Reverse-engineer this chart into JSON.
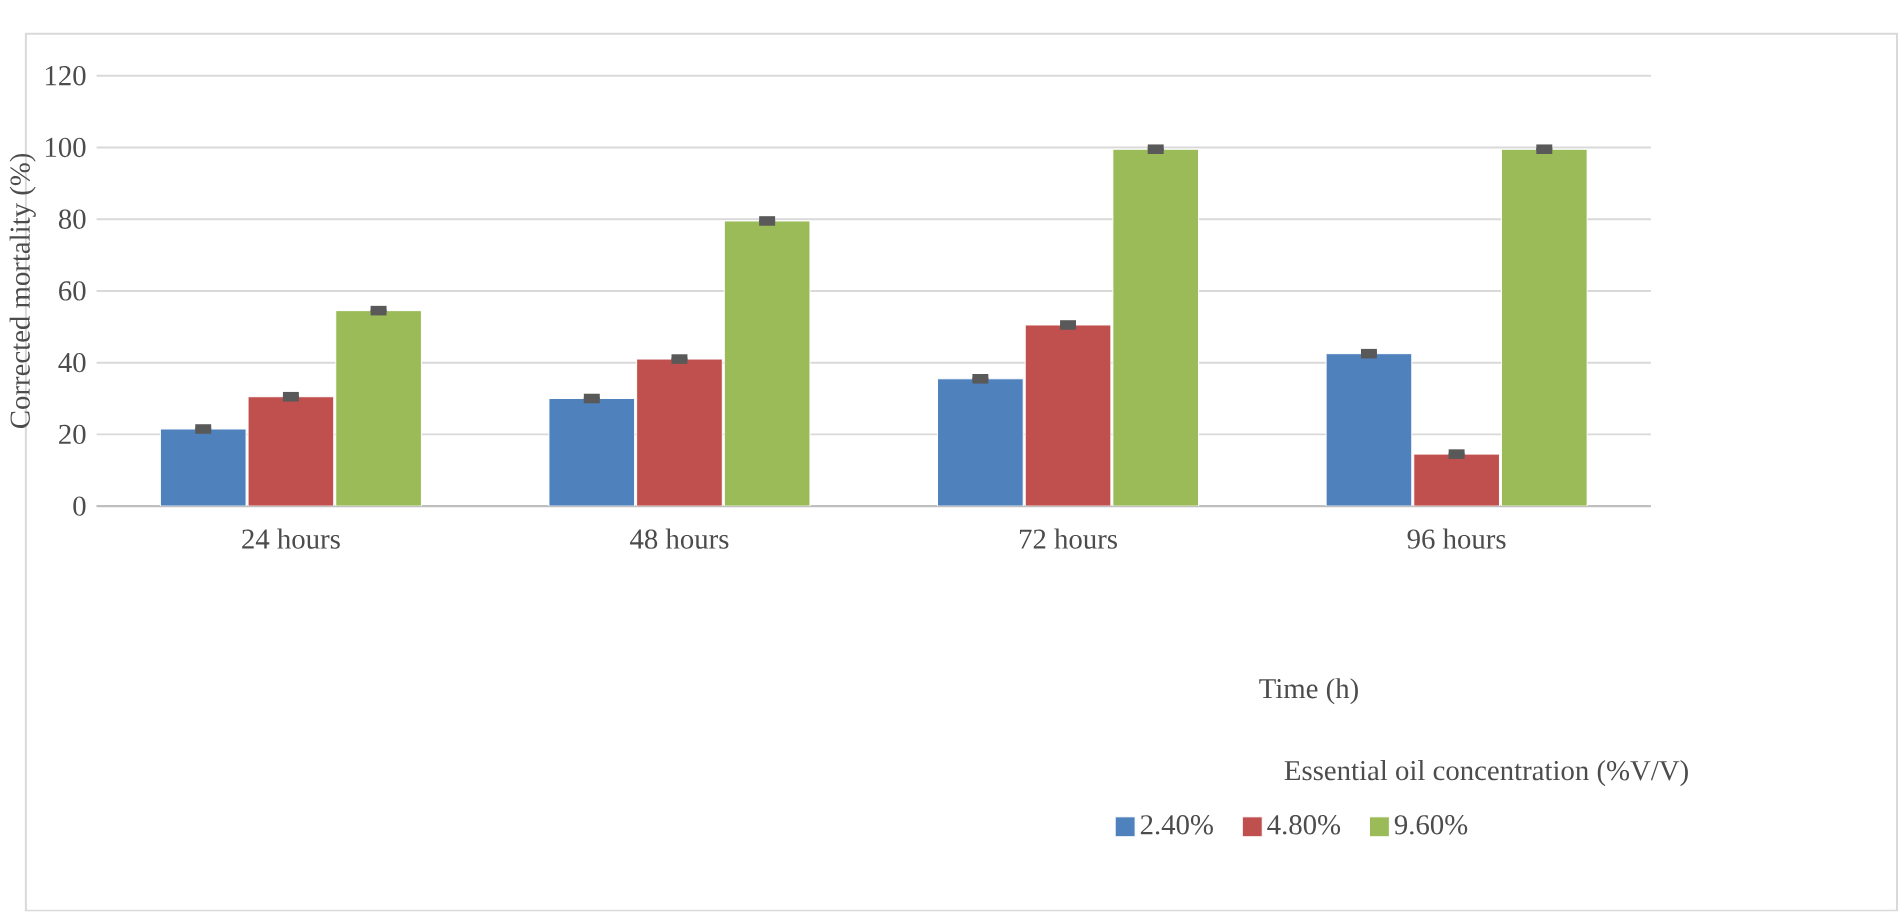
{
  "chart_data": {
    "type": "bar",
    "xlabel": "Time (h)",
    "ylabel": "Corrected mortality (%)",
    "legend_title": "Essential oil concentration (%V/V)",
    "categories": [
      "24 hours",
      "48 hours",
      "72 hours",
      "96 hours"
    ],
    "series": [
      {
        "name": "2.40%",
        "color": "#4f81bd",
        "values": [
          21.5,
          30,
          35.5,
          42.5
        ],
        "errors": [
          0.5,
          0.5,
          0.5,
          0.5
        ]
      },
      {
        "name": "4.80%",
        "color": "#c0504d",
        "values": [
          30.5,
          41,
          50.5,
          14.5
        ],
        "errors": [
          0.5,
          0.5,
          0.5,
          0.5
        ]
      },
      {
        "name": "9.60%",
        "color": "#9bbb59",
        "values": [
          54.5,
          79.5,
          99.5,
          99.5
        ],
        "errors": [
          0.5,
          0.5,
          0.5,
          0.5
        ]
      }
    ],
    "ylim": [
      0,
      120
    ],
    "yticks": [
      0,
      20,
      40,
      60,
      80,
      100,
      120
    ],
    "grid": "y",
    "legend": "bottom"
  }
}
